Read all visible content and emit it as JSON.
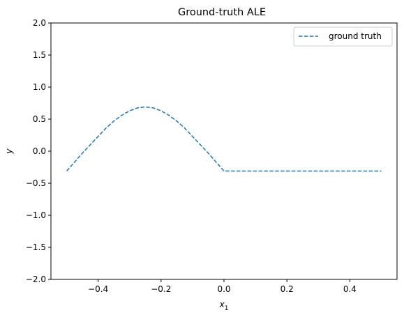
{
  "chart_data": {
    "type": "line",
    "title": "Ground-truth ALE",
    "xlabel": "x",
    "xlabel_sub": "1",
    "ylabel": "y",
    "xlim": [
      -0.55,
      0.55
    ],
    "ylim": [
      -2.0,
      2.0
    ],
    "x_ticks": [
      -0.4,
      -0.2,
      0.0,
      0.2,
      0.4
    ],
    "x_tick_labels": [
      "−0.4",
      "−0.2",
      "0.0",
      "0.2",
      "0.4"
    ],
    "y_ticks": [
      -2.0,
      -1.5,
      -1.0,
      -0.5,
      0.0,
      0.5,
      1.0,
      1.5,
      2.0
    ],
    "y_tick_labels": [
      "−2.0",
      "−1.5",
      "−1.0",
      "−0.5",
      "0.0",
      "0.5",
      "1.0",
      "1.5",
      "2.0"
    ],
    "grid": false,
    "legend_position": "top-right",
    "series": [
      {
        "name": "ground truth",
        "color": "#1f77b4",
        "linestyle": "dashed",
        "x": [
          -0.5,
          -0.475,
          -0.45,
          -0.425,
          -0.4,
          -0.375,
          -0.35,
          -0.325,
          -0.3,
          -0.275,
          -0.25,
          -0.225,
          -0.2,
          -0.175,
          -0.15,
          -0.125,
          -0.1,
          -0.075,
          -0.05,
          -0.025,
          0.0,
          0.1,
          0.2,
          0.3,
          0.4,
          0.5
        ],
        "y": [
          -0.31,
          -0.17,
          -0.03,
          0.1,
          0.23,
          0.36,
          0.47,
          0.56,
          0.63,
          0.675,
          0.69,
          0.675,
          0.63,
          0.56,
          0.47,
          0.36,
          0.23,
          0.1,
          -0.03,
          -0.17,
          -0.31,
          -0.31,
          -0.31,
          -0.31,
          -0.31,
          -0.31
        ]
      }
    ]
  }
}
